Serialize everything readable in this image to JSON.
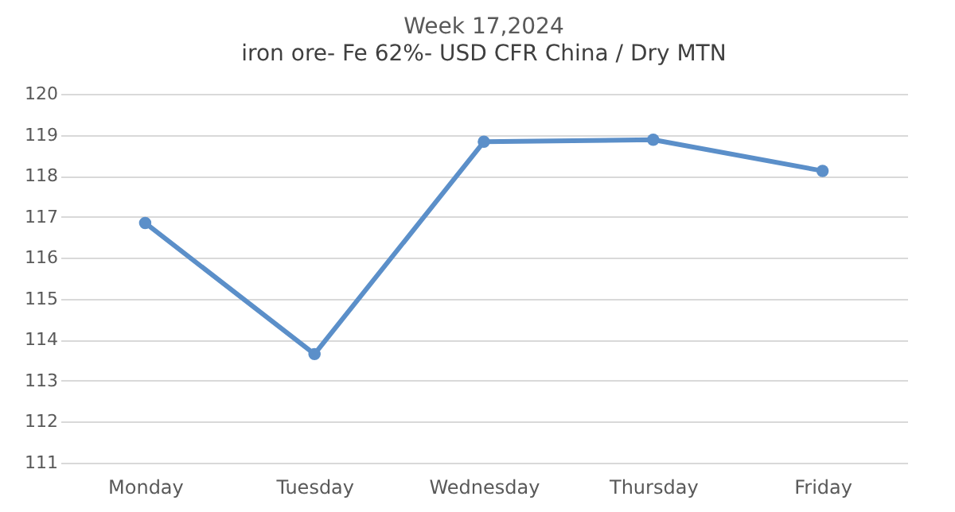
{
  "chart_data": {
    "type": "line",
    "title": "Week 17,2024",
    "subtitle": "iron ore- Fe 62%- USD CFR China / Dry MTN",
    "categories": [
      "Monday",
      "Tuesday",
      "Wednesday",
      "Thursday",
      "Friday"
    ],
    "series": [
      {
        "color": "#5b8fc9",
        "values": [
          116.85,
          113.65,
          118.83,
          118.88,
          118.12
        ]
      }
    ],
    "ylim": [
      111,
      120
    ],
    "yticks": [
      111,
      112,
      113,
      114,
      115,
      116,
      117,
      118,
      119,
      120
    ],
    "grid": "y",
    "marker": "circle",
    "line_style": "solid",
    "legend": false
  }
}
